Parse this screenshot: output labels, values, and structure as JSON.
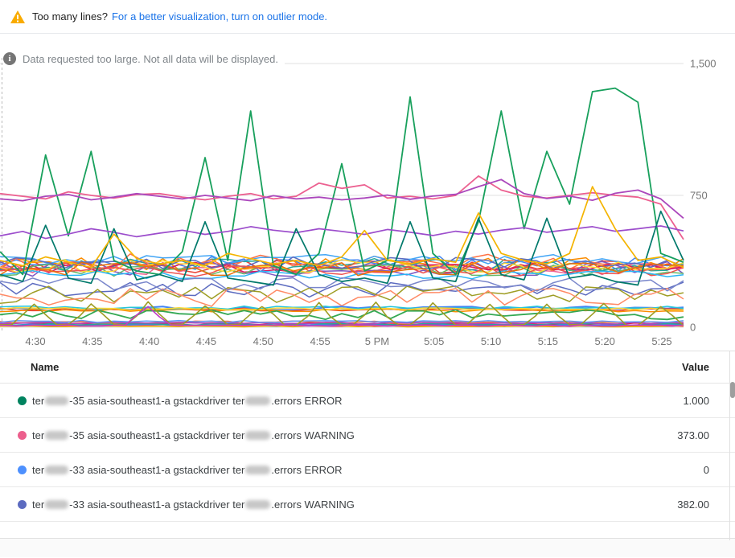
{
  "banner": {
    "warning_text": "Too many lines?",
    "link_text": "For a better visualization, turn on outlier mode.",
    "warning_color": "#f9ab00",
    "link_color": "#1a73e8"
  },
  "info_message": {
    "text": "Data requested too large. Not all data will be displayed."
  },
  "table": {
    "headers": {
      "name": "Name",
      "value": "Value"
    },
    "rows": [
      {
        "dot_color": "#00835f",
        "name_segments": [
          {
            "t": "ter"
          },
          {
            "blur": 29
          },
          {
            "t": "-35 asia-southeast1-a gstackdriver ter"
          },
          {
            "blur": 31
          },
          {
            "t": ".errors ERROR"
          }
        ],
        "value": "1.000"
      },
      {
        "dot_color": "#ec5f8d",
        "name_segments": [
          {
            "t": "ter"
          },
          {
            "blur": 29
          },
          {
            "t": "-35 asia-southeast1-a gstackdriver ter"
          },
          {
            "blur": 31
          },
          {
            "t": ".errors WARNING"
          }
        ],
        "value": "373.00"
      },
      {
        "dot_color": "#4d90fe",
        "name_segments": [
          {
            "t": "ter"
          },
          {
            "blur": 29
          },
          {
            "t": "-33 asia-southeast1-a gstackdriver ter"
          },
          {
            "blur": 31
          },
          {
            "t": ".errors ERROR"
          }
        ],
        "value": "0"
      },
      {
        "dot_color": "#5c6bc0",
        "name_segments": [
          {
            "t": "ter"
          },
          {
            "blur": 29
          },
          {
            "t": "-33 asia-southeast1-a gstackdriver ter"
          },
          {
            "blur": 31
          },
          {
            "t": ".errors WARNING"
          }
        ],
        "value": "382.00"
      }
    ]
  },
  "chart_data": {
    "type": "line",
    "title": "",
    "xlabel": "",
    "ylabel": "",
    "ylim": [
      0,
      1500
    ],
    "yticks": [
      {
        "value": 0,
        "label": "0"
      },
      {
        "value": 750,
        "label": "750"
      },
      {
        "value": 1500,
        "label": "1,500"
      }
    ],
    "x_ticks": [
      "4:30",
      "4:35",
      "4:40",
      "4:45",
      "4:50",
      "4:55",
      "5 PM",
      "5:05",
      "5:10",
      "5:15",
      "5:20",
      "5:25"
    ],
    "grid": true,
    "legend_position": "table-below",
    "featured_series": [
      {
        "name": "green-spiky",
        "color": "#18a05c",
        "width": 1.8,
        "values": [
          430,
          300,
          980,
          520,
          1000,
          380,
          320,
          300,
          430,
          965,
          380,
          1230,
          350,
          300,
          420,
          930,
          320,
          380,
          1310,
          420,
          300,
          600,
          1230,
          560,
          1000,
          700,
          1340,
          1360,
          1280,
          420,
          370
        ]
      },
      {
        "name": "pink-750",
        "color": "#ec6090",
        "width": 1.8,
        "values": [
          760,
          745,
          730,
          770,
          750,
          735,
          755,
          760,
          740,
          725,
          745,
          760,
          730,
          745,
          820,
          790,
          810,
          735,
          745,
          730,
          750,
          860,
          780,
          745,
          735,
          750,
          765,
          750,
          740,
          700,
          500
        ]
      },
      {
        "name": "purple-750",
        "color": "#ab47bc",
        "width": 1.8,
        "values": [
          730,
          720,
          745,
          755,
          725,
          740,
          760,
          745,
          730,
          750,
          735,
          720,
          748,
          730,
          740,
          725,
          735,
          752,
          728,
          746,
          756,
          800,
          840,
          760,
          732,
          746,
          722,
          762,
          780,
          730,
          620
        ]
      },
      {
        "name": "purple-mid",
        "color": "#9c4dcc",
        "width": 1.7,
        "values": [
          520,
          545,
          505,
          530,
          560,
          540,
          515,
          535,
          552,
          528,
          545,
          572,
          552,
          538,
          560,
          545,
          528,
          556,
          540,
          522,
          546,
          530,
          552,
          566,
          540,
          556,
          572,
          546,
          560,
          576,
          548
        ]
      },
      {
        "name": "dark-teal-spiky",
        "color": "#00796b",
        "width": 1.7,
        "values": [
          300,
          260,
          580,
          280,
          250,
          560,
          270,
          300,
          260,
          600,
          280,
          260,
          240,
          560,
          300,
          260,
          280,
          250,
          600,
          280,
          260,
          620,
          300,
          270,
          620,
          280,
          300,
          260,
          240,
          660,
          380
        ]
      },
      {
        "name": "yellow-spiky",
        "color": "#f4b400",
        "width": 1.7,
        "values": [
          380,
          350,
          400,
          370,
          340,
          530,
          390,
          360,
          380,
          350,
          420,
          390,
          360,
          380,
          350,
          400,
          550,
          380,
          360,
          390,
          370,
          650,
          420,
          380,
          360,
          420,
          800,
          560,
          380,
          400,
          340
        ]
      }
    ],
    "background_series": [
      {
        "color": "#4285f4",
        "base": 360,
        "amp": 45,
        "seed": 1
      },
      {
        "color": "#ea4335",
        "base": 345,
        "amp": 35,
        "seed": 2
      },
      {
        "color": "#fb8c00",
        "base": 355,
        "amp": 45,
        "seed": 3
      },
      {
        "color": "#f06292",
        "base": 335,
        "amp": 35,
        "seed": 4
      },
      {
        "color": "#26a69a",
        "base": 350,
        "amp": 40,
        "seed": 5
      },
      {
        "color": "#7e57c2",
        "base": 330,
        "amp": 45,
        "seed": 6
      },
      {
        "color": "#ff7043",
        "base": 372,
        "amp": 50,
        "seed": 7
      },
      {
        "color": "#42a5f5",
        "base": 388,
        "amp": 28,
        "seed": 8
      },
      {
        "color": "#d81b60",
        "base": 340,
        "amp": 30,
        "seed": 9
      },
      {
        "color": "#66bb6a",
        "base": 325,
        "amp": 35,
        "seed": 10
      },
      {
        "color": "#fdd835",
        "base": 348,
        "amp": 40,
        "seed": 11
      },
      {
        "color": "#5c6bc0",
        "base": 365,
        "amp": 35,
        "seed": 12
      },
      {
        "color": "#ef5350",
        "base": 318,
        "amp": 30,
        "seed": 13
      },
      {
        "color": "#29b6f6",
        "base": 300,
        "amp": 25,
        "seed": 14
      },
      {
        "color": "#e8710a",
        "base": 332,
        "amp": 38,
        "seed": 15
      },
      {
        "color": "#5c6bc0",
        "base": 212,
        "amp": 45,
        "seed": 16
      },
      {
        "color": "#9e9d24",
        "base": 185,
        "amp": 50,
        "seed": 17
      },
      {
        "color": "#ff8a65",
        "base": 172,
        "amp": 55,
        "seed": 18
      },
      {
        "color": "#7986cb",
        "base": 242,
        "amp": 40,
        "seed": 19
      },
      {
        "color": "#4285f4",
        "base": 108,
        "amp": 10,
        "seed": 20,
        "width": 2
      },
      {
        "color": "#e53935",
        "base": 101,
        "amp": 8,
        "seed": 21
      },
      {
        "color": "#fb8c00",
        "base": 96,
        "amp": 8,
        "seed": 22
      },
      {
        "color": "#26c6da",
        "base": 112,
        "amp": 9,
        "seed": 23
      },
      {
        "color": "#fdd835",
        "base": 104,
        "amp": 7,
        "seed": 34
      },
      {
        "color": "#34a853",
        "base": 72,
        "amp": 28,
        "seed": 24,
        "width": 1.8
      },
      {
        "color": "#4285f4",
        "base": 12,
        "amp": 5,
        "seed": 25,
        "width": 2.4
      },
      {
        "color": "#d81b60",
        "base": 21,
        "amp": 6,
        "seed": 26
      },
      {
        "color": "#ff7043",
        "base": 29,
        "amp": 7,
        "seed": 27
      },
      {
        "color": "#26a69a",
        "base": 16,
        "amp": 5,
        "seed": 28
      },
      {
        "color": "#ab47bc",
        "base": 24,
        "amp": 6,
        "seed": 29
      },
      {
        "color": "#ec407a",
        "base": 8,
        "amp": 4,
        "seed": 30
      },
      {
        "color": "#5e97f6",
        "base": 33,
        "amp": 6,
        "seed": 31
      },
      {
        "color": "#f4b400",
        "base": 5,
        "amp": 3,
        "seed": 32
      }
    ],
    "spike_series": [
      {
        "color": "#9e9d24",
        "base": 14,
        "shoulder": 70,
        "peak": 132,
        "period": 5,
        "offset": 3,
        "seed": 33
      },
      {
        "color": "#c03bc4",
        "base": 10,
        "shoulder": 70,
        "peak": 128,
        "period": 61,
        "offset": 13,
        "seed": 35
      }
    ]
  }
}
